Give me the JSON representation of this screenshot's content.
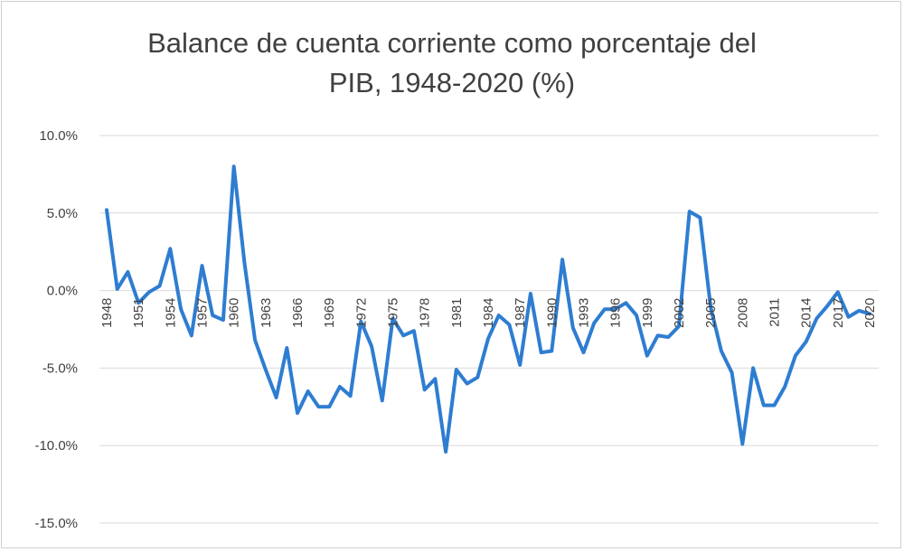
{
  "chart_data": {
    "type": "line",
    "title_lines": [
      "Balance de cuenta corriente como porcentaje del",
      "PIB, 1948-2020 (%)"
    ],
    "xlabel": "",
    "ylabel": "",
    "ylim": [
      -15,
      10
    ],
    "yticks": [
      10,
      5,
      0,
      -5,
      -10,
      -15
    ],
    "ytick_labels": [
      "10.0%",
      "5.0%",
      "0.0%",
      "-5.0%",
      "-10.0%",
      "-15.0%"
    ],
    "x_tick_labels": [
      "1948",
      "1951",
      "1954",
      "1957",
      "1960",
      "1963",
      "1966",
      "1969",
      "1972",
      "1975",
      "1978",
      "1981",
      "1984",
      "1987",
      "1990",
      "1993",
      "1996",
      "1999",
      "2002",
      "2005",
      "2008",
      "2011",
      "2014",
      "2017",
      "2020"
    ],
    "grid": true,
    "legend": "none",
    "line_color": "#2e7dd1",
    "series": [
      {
        "x": [
          1948,
          1949,
          1950,
          1951,
          1952,
          1953,
          1954,
          1955,
          1956,
          1957,
          1958,
          1959,
          1960,
          1961,
          1962,
          1963,
          1964,
          1965,
          1966,
          1967,
          1968,
          1969,
          1970,
          1971,
          1972,
          1973,
          1974,
          1975,
          1976,
          1977,
          1978,
          1979,
          1980,
          1981,
          1982,
          1983,
          1984,
          1985,
          1986,
          1987,
          1988,
          1989,
          1990,
          1991,
          1992,
          1993,
          1994,
          1995,
          1996,
          1997,
          1998,
          1999,
          2000,
          2001,
          2002,
          2003,
          2004,
          2005,
          2006,
          2007,
          2008,
          2009,
          2010,
          2011,
          2012,
          2013,
          2014,
          2015,
          2016,
          2017,
          2018,
          2019,
          2020
        ],
        "values": [
          5.2,
          0.1,
          1.2,
          -0.8,
          -0.1,
          0.3,
          2.7,
          -1.2,
          -2.9,
          1.6,
          -1.6,
          -1.9,
          8.0,
          1.8,
          -3.2,
          -5.1,
          -6.9,
          -3.7,
          -7.9,
          -6.5,
          -7.5,
          -7.5,
          -6.2,
          -6.8,
          -2.0,
          -3.6,
          -7.1,
          -1.8,
          -2.9,
          -2.6,
          -6.4,
          -5.7,
          -10.4,
          -5.1,
          -6.0,
          -5.6,
          -3.1,
          -1.6,
          -2.2,
          -4.8,
          -0.2,
          -4.0,
          -3.9,
          2.0,
          -2.4,
          -4.0,
          -2.1,
          -1.2,
          -1.2,
          -0.8,
          -1.6,
          -4.2,
          -2.9,
          -3.0,
          -2.3,
          5.1,
          4.7,
          -1.1,
          -3.9,
          -5.3,
          -9.9,
          -5.0,
          -7.4,
          -7.4,
          -6.2,
          -4.2,
          -3.3,
          -1.8,
          -1.0,
          -0.1,
          -1.7,
          -1.3,
          -1.5
        ]
      }
    ]
  }
}
